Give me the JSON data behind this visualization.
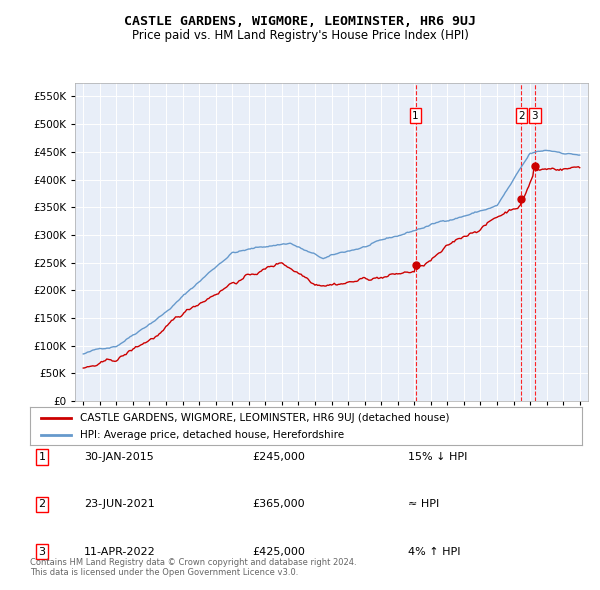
{
  "title": "CASTLE GARDENS, WIGMORE, LEOMINSTER, HR6 9UJ",
  "subtitle": "Price paid vs. HM Land Registry's House Price Index (HPI)",
  "legend_line1": "CASTLE GARDENS, WIGMORE, LEOMINSTER, HR6 9UJ (detached house)",
  "legend_line2": "HPI: Average price, detached house, Herefordshire",
  "sales": [
    {
      "num": 1,
      "date": "30-JAN-2015",
      "price": 245000,
      "rel": "15% ↓ HPI",
      "x_year": 2015.08
    },
    {
      "num": 2,
      "date": "23-JUN-2021",
      "price": 365000,
      "rel": "≈ HPI",
      "x_year": 2021.48
    },
    {
      "num": 3,
      "date": "11-APR-2022",
      "price": 425000,
      "rel": "4% ↑ HPI",
      "x_year": 2022.28
    }
  ],
  "footnote": "Contains HM Land Registry data © Crown copyright and database right 2024.\nThis data is licensed under the Open Government Licence v3.0.",
  "red_color": "#cc0000",
  "blue_color": "#6699cc",
  "bg_color": "#e8eef8",
  "grid_color": "#ffffff",
  "ylim": [
    0,
    575000
  ],
  "yticks": [
    0,
    50000,
    100000,
    150000,
    200000,
    250000,
    300000,
    350000,
    400000,
    450000,
    500000,
    550000
  ],
  "xlim": [
    1994.5,
    2025.5
  ]
}
